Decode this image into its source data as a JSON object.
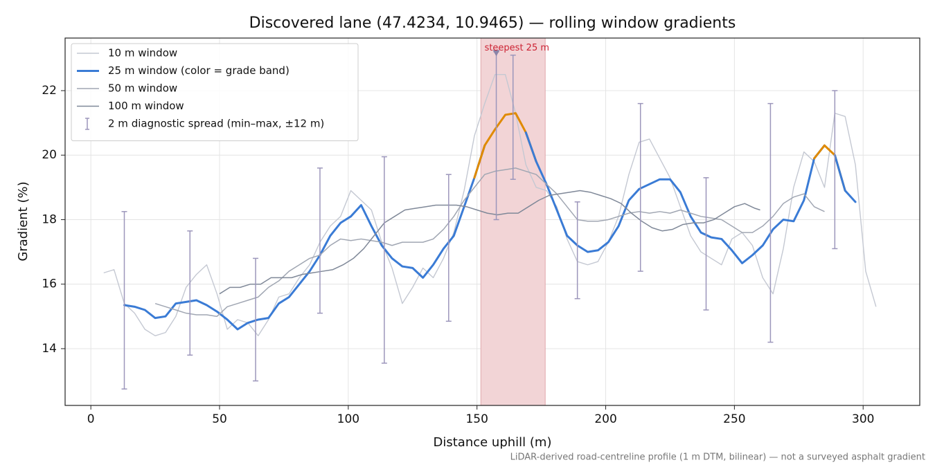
{
  "chart_data": {
    "type": "line",
    "title": "Discovered lane (47.4234, 10.9465) — rolling window gradients",
    "xlabel": "Distance uphill (m)",
    "ylabel": "Gradient (%)",
    "footnote": "LiDAR-derived road-centreline profile (1 m DTM, bilinear) — not a surveyed asphalt gradient",
    "xlim": [
      -10,
      322
    ],
    "ylim": [
      12.24,
      23.63
    ],
    "xticks": [
      0,
      50,
      100,
      150,
      200,
      250,
      300
    ],
    "yticks": [
      14,
      16,
      18,
      20,
      22
    ],
    "grid": true,
    "legend": "upper left",
    "highlight": {
      "xmin": 151.5,
      "xmax": 176.5,
      "color": "#f2d4d6"
    },
    "annotation": {
      "text": "steepest 25 m",
      "x": 157.5,
      "y": 23.15,
      "color": "#cc2233",
      "marker_color": "#8a84a8"
    },
    "grade_bands": [
      {
        "min": 20,
        "color": "#e08a00"
      }
    ],
    "series": [
      {
        "name": "10 m window",
        "kind": "line",
        "color": "#c4c8d2",
        "width": 1.4,
        "x": [
          5,
          9,
          13,
          17,
          21,
          25,
          29,
          33,
          37,
          41,
          45,
          49,
          53,
          57,
          61,
          65,
          69,
          73,
          77,
          81,
          85,
          89,
          93,
          97,
          101,
          105,
          109,
          113,
          117,
          121,
          125,
          129,
          133,
          137,
          141,
          145,
          149,
          153,
          157,
          161,
          165,
          169,
          173,
          177,
          181,
          185,
          189,
          193,
          197,
          201,
          205,
          209,
          213,
          217,
          221,
          225,
          229,
          233,
          237,
          241,
          245,
          249,
          253,
          257,
          261,
          265,
          269,
          273,
          277,
          281,
          285,
          289,
          293,
          297,
          301,
          305
        ],
        "values": [
          16.35,
          16.45,
          15.4,
          15.1,
          14.6,
          14.4,
          14.5,
          15.0,
          15.9,
          16.3,
          16.6,
          15.7,
          14.6,
          14.9,
          14.8,
          14.4,
          14.9,
          15.6,
          15.7,
          16.2,
          16.6,
          17.3,
          17.8,
          18.1,
          18.9,
          18.6,
          18.3,
          17.3,
          16.5,
          15.4,
          15.9,
          16.5,
          16.2,
          16.8,
          17.6,
          18.9,
          20.6,
          21.6,
          22.5,
          22.5,
          21.3,
          19.7,
          19.0,
          18.9,
          18.4,
          17.4,
          16.7,
          16.6,
          16.7,
          17.3,
          18.1,
          19.4,
          20.4,
          20.5,
          19.9,
          19.3,
          18.4,
          17.5,
          17.0,
          16.8,
          16.6,
          17.4,
          17.6,
          17.2,
          16.2,
          15.7,
          17.1,
          19.0,
          20.1,
          19.8,
          19.0,
          21.3,
          21.2,
          19.7,
          16.4,
          15.3
        ]
      },
      {
        "name": "25 m window (color = grade band)",
        "kind": "line",
        "banded": true,
        "color": "#3a7bd5",
        "width": 3,
        "x": [
          13,
          17,
          21,
          25,
          29,
          33,
          37,
          41,
          45,
          49,
          53,
          57,
          61,
          65,
          69,
          73,
          77,
          81,
          85,
          89,
          93,
          97,
          101,
          105,
          109,
          113,
          117,
          121,
          125,
          129,
          133,
          137,
          141,
          145,
          149,
          153,
          157,
          161,
          165,
          169,
          173,
          177,
          181,
          185,
          189,
          193,
          197,
          201,
          205,
          209,
          213,
          217,
          221,
          225,
          229,
          233,
          237,
          241,
          245,
          249,
          253,
          257,
          261,
          265,
          269,
          273,
          277,
          281,
          285,
          289,
          293,
          297
        ],
        "values": [
          15.35,
          15.3,
          15.2,
          14.95,
          15.0,
          15.4,
          15.45,
          15.5,
          15.35,
          15.15,
          14.9,
          14.6,
          14.8,
          14.9,
          14.95,
          15.4,
          15.6,
          16.0,
          16.4,
          16.9,
          17.5,
          17.9,
          18.1,
          18.45,
          17.8,
          17.2,
          16.8,
          16.55,
          16.5,
          16.2,
          16.6,
          17.1,
          17.5,
          18.4,
          19.3,
          20.3,
          20.8,
          21.25,
          21.3,
          20.7,
          19.8,
          19.1,
          18.3,
          17.5,
          17.2,
          17.0,
          17.05,
          17.3,
          17.8,
          18.6,
          18.95,
          19.1,
          19.25,
          19.25,
          18.85,
          18.1,
          17.6,
          17.45,
          17.4,
          17.05,
          16.65,
          16.9,
          17.2,
          17.7,
          18.0,
          17.95,
          18.6,
          19.9,
          20.3,
          20.0,
          18.9,
          18.55
        ]
      },
      {
        "name": "50 m window",
        "kind": "line",
        "color": "#a0a6b2",
        "width": 1.5,
        "x": [
          25,
          29,
          33,
          37,
          41,
          45,
          49,
          53,
          57,
          61,
          65,
          69,
          73,
          77,
          81,
          85,
          89,
          93,
          97,
          101,
          105,
          109,
          113,
          117,
          121,
          125,
          129,
          133,
          137,
          141,
          145,
          149,
          153,
          157,
          161,
          165,
          169,
          173,
          177,
          181,
          185,
          189,
          193,
          197,
          201,
          205,
          209,
          213,
          217,
          221,
          225,
          229,
          233,
          237,
          241,
          245,
          249,
          253,
          257,
          261,
          265,
          269,
          273,
          277,
          281,
          285
        ],
        "values": [
          15.4,
          15.3,
          15.2,
          15.1,
          15.05,
          15.05,
          15.0,
          15.3,
          15.4,
          15.5,
          15.6,
          15.9,
          16.1,
          16.4,
          16.6,
          16.8,
          16.9,
          17.2,
          17.4,
          17.35,
          17.4,
          17.35,
          17.3,
          17.2,
          17.3,
          17.3,
          17.3,
          17.4,
          17.7,
          18.1,
          18.6,
          19.0,
          19.4,
          19.5,
          19.55,
          19.6,
          19.5,
          19.4,
          19.1,
          18.8,
          18.4,
          18.0,
          17.95,
          17.95,
          18.0,
          18.1,
          18.2,
          18.25,
          18.2,
          18.25,
          18.2,
          18.3,
          18.2,
          18.1,
          18.05,
          18.0,
          17.8,
          17.6,
          17.6,
          17.8,
          18.1,
          18.5,
          18.7,
          18.8,
          18.4,
          18.25
        ]
      },
      {
        "name": "100 m window",
        "kind": "line",
        "color": "#7f8898",
        "width": 1.5,
        "x": [
          50,
          54,
          58,
          62,
          66,
          70,
          74,
          78,
          82,
          86,
          90,
          94,
          98,
          102,
          106,
          110,
          114,
          118,
          122,
          126,
          130,
          134,
          138,
          142,
          146,
          150,
          154,
          158,
          162,
          166,
          170,
          174,
          178,
          182,
          186,
          190,
          194,
          198,
          202,
          206,
          210,
          214,
          218,
          222,
          226,
          230,
          234,
          238,
          242,
          246,
          250,
          254,
          258,
          260
        ],
        "values": [
          15.7,
          15.9,
          15.9,
          16.0,
          16.0,
          16.2,
          16.2,
          16.2,
          16.3,
          16.35,
          16.4,
          16.45,
          16.6,
          16.8,
          17.1,
          17.5,
          17.9,
          18.1,
          18.3,
          18.35,
          18.4,
          18.45,
          18.45,
          18.45,
          18.4,
          18.3,
          18.2,
          18.15,
          18.2,
          18.2,
          18.4,
          18.6,
          18.75,
          18.8,
          18.85,
          18.9,
          18.85,
          18.75,
          18.65,
          18.5,
          18.2,
          17.95,
          17.75,
          17.65,
          17.7,
          17.85,
          17.9,
          17.9,
          18.0,
          18.2,
          18.4,
          18.5,
          18.35,
          18.3
        ]
      },
      {
        "name": "2 m diagnostic spread (min–max, ±12 m)",
        "kind": "errorbar",
        "color": "#9c96bb",
        "x": [
          13,
          38.5,
          64,
          89,
          114,
          139,
          157.5,
          164,
          189,
          213.5,
          239,
          264,
          289
        ],
        "low": [
          12.75,
          13.8,
          13.0,
          15.1,
          13.55,
          14.85,
          18.0,
          19.25,
          15.55,
          16.4,
          15.2,
          14.2,
          17.1
        ],
        "high": [
          18.25,
          17.65,
          16.8,
          19.6,
          19.95,
          19.4,
          23.2,
          23.1,
          18.55,
          21.6,
          19.3,
          21.6,
          22.0
        ]
      }
    ]
  }
}
